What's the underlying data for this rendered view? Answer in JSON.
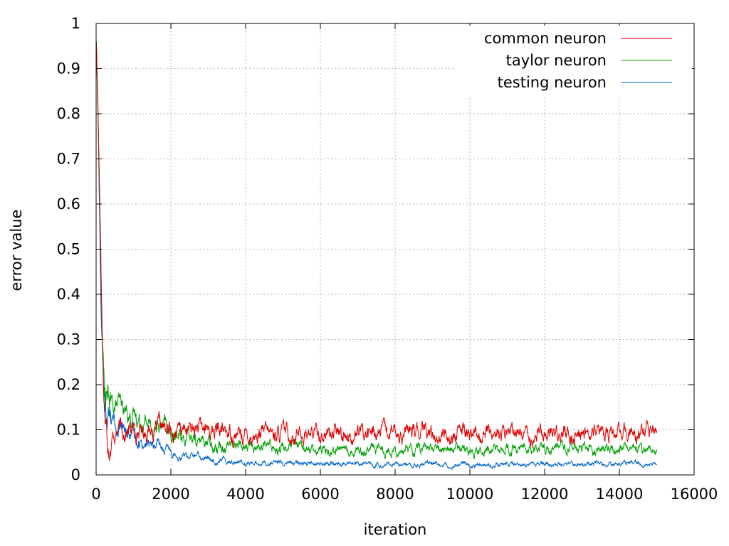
{
  "chart_data": {
    "type": "line",
    "title": "",
    "xlabel": "iteration",
    "ylabel": "error value",
    "xlim": [
      0,
      16000
    ],
    "ylim": [
      0,
      1
    ],
    "xticks": [
      0,
      2000,
      4000,
      6000,
      8000,
      10000,
      12000,
      14000,
      16000
    ],
    "yticks": [
      0,
      0.1,
      0.2,
      0.3,
      0.4,
      0.5,
      0.6,
      0.7,
      0.8,
      0.9,
      1
    ],
    "xtick_labels": [
      "0",
      "2000",
      "4000",
      "6000",
      "8000",
      "10000",
      "12000",
      "14000",
      "16000"
    ],
    "ytick_labels": [
      "0",
      "0.1",
      "0.2",
      "0.3",
      "0.4",
      "0.5",
      "0.6",
      "0.7",
      "0.8",
      "0.9",
      "1"
    ],
    "grid": true,
    "legend_position": "top-right",
    "series": [
      {
        "name": "common neuron",
        "color": "#e00000",
        "x": [
          0,
          50,
          100,
          150,
          200,
          250,
          300,
          350,
          400,
          500,
          600,
          700,
          800,
          1000,
          1200,
          1500,
          1800,
          2000,
          2200,
          2500,
          3000,
          3500,
          4000,
          4500,
          5000,
          6000,
          7000,
          8000,
          9000,
          10000,
          11000,
          12000,
          13000,
          14000,
          15000
        ],
        "y": [
          0.97,
          0.82,
          0.62,
          0.38,
          0.2,
          0.12,
          0.09,
          0.085,
          0.087,
          0.095,
          0.1,
          0.1,
          0.098,
          0.1,
          0.1,
          0.1,
          0.1,
          0.095,
          0.097,
          0.1,
          0.1,
          0.095,
          0.088,
          0.09,
          0.092,
          0.092,
          0.092,
          0.092,
          0.092,
          0.091,
          0.092,
          0.094,
          0.091,
          0.092,
          0.088
        ]
      },
      {
        "name": "taylor neuron",
        "color": "#00a000",
        "x": [
          0,
          50,
          100,
          150,
          200,
          250,
          300,
          400,
          500,
          600,
          700,
          800,
          1000,
          1200,
          1500,
          1800,
          2000,
          2300,
          2500,
          3000,
          3500,
          4000,
          5000,
          6000,
          7000,
          8000,
          9000,
          10000,
          11000,
          12000,
          13000,
          14000,
          15000
        ],
        "y": [
          0.97,
          0.82,
          0.6,
          0.36,
          0.22,
          0.17,
          0.16,
          0.155,
          0.15,
          0.155,
          0.145,
          0.14,
          0.13,
          0.125,
          0.11,
          0.105,
          0.09,
          0.085,
          0.08,
          0.072,
          0.07,
          0.065,
          0.062,
          0.058,
          0.057,
          0.057,
          0.058,
          0.057,
          0.057,
          0.058,
          0.057,
          0.058,
          0.058
        ]
      },
      {
        "name": "testing neuron",
        "color": "#0066cc",
        "x": [
          0,
          50,
          100,
          150,
          200,
          250,
          300,
          400,
          500,
          600,
          800,
          1000,
          1200,
          1500,
          1800,
          2000,
          2500,
          3000,
          3500,
          4000,
          5000,
          6000,
          7000,
          8000,
          9000,
          10000,
          11000,
          12000,
          13000,
          14000,
          15000
        ],
        "y": [
          0.97,
          0.8,
          0.55,
          0.3,
          0.18,
          0.15,
          0.14,
          0.125,
          0.11,
          0.1,
          0.09,
          0.085,
          0.075,
          0.065,
          0.055,
          0.05,
          0.042,
          0.035,
          0.032,
          0.028,
          0.026,
          0.024,
          0.024,
          0.023,
          0.024,
          0.024,
          0.023,
          0.023,
          0.024,
          0.024,
          0.024
        ]
      }
    ]
  }
}
